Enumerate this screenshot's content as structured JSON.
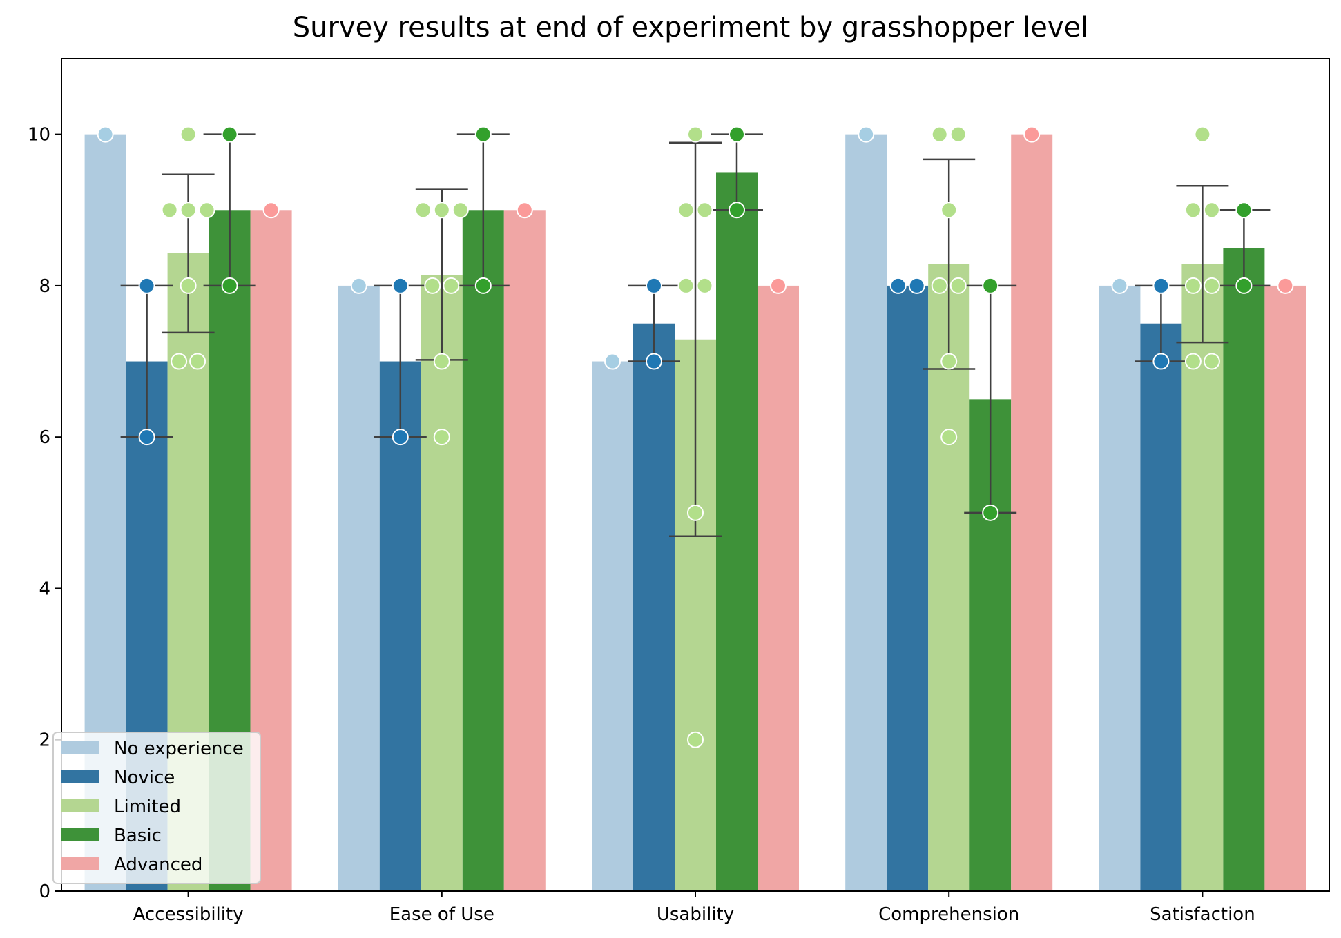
{
  "chart_data": {
    "type": "bar",
    "title": "Survey results at end of experiment by grasshopper level",
    "xlabel": "",
    "ylabel": "",
    "ylim": [
      0,
      11
    ],
    "yticks": [
      0,
      2,
      4,
      6,
      8,
      10
    ],
    "grid": false,
    "legend_placement": "bottom-left",
    "categories": [
      "Accessibility",
      "Ease of Use",
      "Usability",
      "Comprehension",
      "Satisfaction"
    ],
    "series": [
      {
        "name": "No experience",
        "bar_color": "#afcbdf",
        "point_color": "#a6cee3",
        "values": [
          10,
          8,
          7,
          10,
          8
        ],
        "error_low": [
          null,
          null,
          null,
          null,
          null
        ],
        "error_high": [
          null,
          null,
          null,
          null,
          null
        ],
        "points": [
          [
            10
          ],
          [
            8
          ],
          [
            7
          ],
          [
            10
          ],
          [
            8
          ]
        ]
      },
      {
        "name": "Novice",
        "bar_color": "#3274a1",
        "point_color": "#1f78b4",
        "values": [
          7,
          7,
          7.5,
          8,
          7.5
        ],
        "error_low": [
          6,
          6,
          7,
          null,
          7
        ],
        "error_high": [
          8,
          8,
          8,
          null,
          8
        ],
        "points": [
          [
            8,
            6
          ],
          [
            8,
            6
          ],
          [
            8,
            7
          ],
          [
            8,
            8
          ],
          [
            8,
            7
          ]
        ]
      },
      {
        "name": "Limited",
        "bar_color": "#b4d691",
        "point_color": "#b2df8a",
        "values": [
          8.43,
          8.14,
          7.29,
          8.29,
          8.29
        ],
        "error_low": [
          7.38,
          7.02,
          4.69,
          6.9,
          7.25
        ],
        "error_high": [
          9.47,
          9.27,
          9.89,
          9.67,
          9.32
        ],
        "points": [
          [
            10,
            9,
            9,
            9,
            8,
            7,
            7
          ],
          [
            9,
            9,
            9,
            8,
            8,
            7,
            6
          ],
          [
            10,
            9,
            9,
            8,
            8,
            5,
            2
          ],
          [
            10,
            10,
            9,
            8,
            8,
            7,
            6
          ],
          [
            10,
            9,
            9,
            8,
            8,
            7,
            7
          ]
        ]
      },
      {
        "name": "Basic",
        "bar_color": "#3e9239",
        "point_color": "#33a02c",
        "values": [
          9,
          9,
          9.5,
          6.5,
          8.5
        ],
        "error_low": [
          8,
          8,
          9,
          5,
          8
        ],
        "error_high": [
          10,
          10,
          10,
          8,
          9
        ],
        "points": [
          [
            10,
            8
          ],
          [
            10,
            8
          ],
          [
            10,
            9
          ],
          [
            8,
            5
          ],
          [
            9,
            8
          ]
        ]
      },
      {
        "name": "Advanced",
        "bar_color": "#f0a6a5",
        "point_color": "#fb9a99",
        "values": [
          9,
          9,
          8,
          10,
          8
        ],
        "error_low": [
          null,
          null,
          null,
          null,
          null
        ],
        "error_high": [
          null,
          null,
          null,
          null,
          null
        ],
        "points": [
          [
            9
          ],
          [
            9
          ],
          [
            8
          ],
          [
            10
          ],
          [
            8
          ]
        ]
      }
    ]
  }
}
